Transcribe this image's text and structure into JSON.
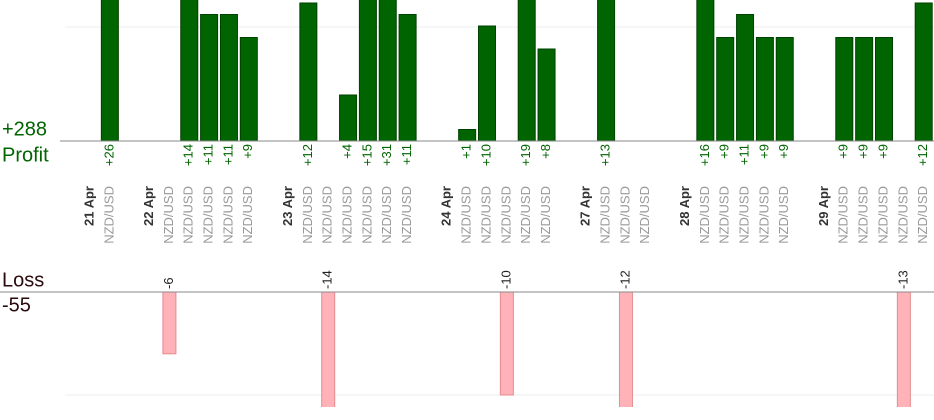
{
  "summary": {
    "profit_total": {
      "value": 288,
      "label": "+288"
    },
    "profit_label": "Profit",
    "loss_label": "Loss",
    "loss_total": -55
  },
  "chart_data": {
    "type": "bar",
    "profit_color": "#006400",
    "loss_color": "#ffb3b8",
    "days": [
      {
        "label": "21 Apr",
        "pairs": [
          "NZD/USD"
        ],
        "values": [
          26
        ],
        "value_labels": [
          "+26"
        ]
      },
      {
        "label": "22 Apr",
        "pairs": [
          "NZD/USD",
          "NZD/USD",
          "NZD/USD",
          "NZD/USD",
          "NZD/USD"
        ],
        "values": [
          -6,
          14,
          11,
          11,
          9
        ],
        "value_labels": [
          "-6",
          "+14",
          "+11",
          "+11",
          "+9"
        ]
      },
      {
        "label": "23 Apr",
        "pairs": [
          "NZD/USD",
          "NZD/USD",
          "NZD/USD",
          "NZD/USD",
          "NZD/USD",
          "NZD/USD"
        ],
        "values": [
          12,
          -14,
          4,
          15,
          31,
          11
        ],
        "value_labels": [
          "+12",
          "-14",
          "+4",
          "+15",
          "+31",
          "+11"
        ]
      },
      {
        "label": "24 Apr",
        "pairs": [
          "NZD/USD",
          "NZD/USD",
          "NZD/USD",
          "NZD/USD",
          "NZD/USD"
        ],
        "values": [
          1,
          10,
          -10,
          19,
          8
        ],
        "value_labels": [
          "+1",
          "+10",
          "-10",
          "+19",
          "+8"
        ]
      },
      {
        "label": "27 Apr",
        "pairs": [
          "NZD/USD",
          "NZD/USD",
          "NZD/USD"
        ],
        "values": [
          13,
          -12,
          null
        ],
        "value_labels": [
          "+13",
          "-12",
          null
        ]
      },
      {
        "label": "28 Apr",
        "pairs": [
          "NZD/USD",
          "NZD/USD",
          "NZD/USD",
          "NZD/USD",
          "NZD/USD"
        ],
        "values": [
          16,
          9,
          11,
          9,
          9
        ],
        "value_labels": [
          "+16",
          "+9",
          "+11",
          "+9",
          "+9"
        ]
      },
      {
        "label": "29 Apr",
        "pairs": [
          "NZD/USD",
          "NZD/USD",
          "NZD/USD",
          "NZD/USD",
          "NZD/USD"
        ],
        "values": [
          9,
          9,
          9,
          -13,
          12
        ],
        "value_labels": [
          "+9",
          "+9",
          "+9",
          "-13",
          "+12"
        ]
      }
    ]
  }
}
